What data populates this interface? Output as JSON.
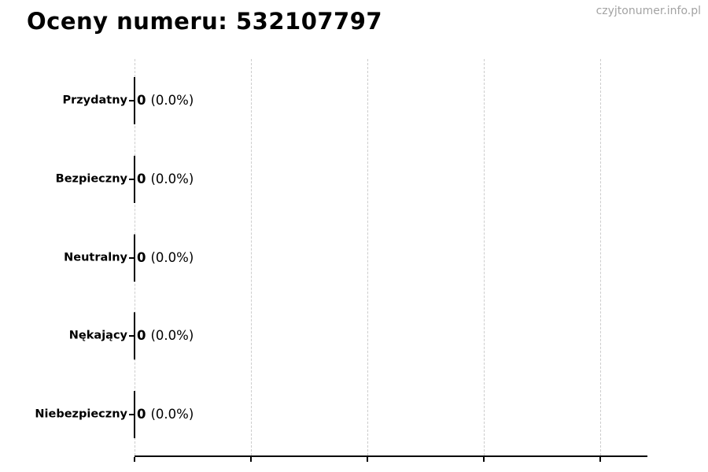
{
  "title": "Oceny numeru: 532107797",
  "watermark": "czyjtonumer.info.pl",
  "colors": {
    "background": "#ffffff",
    "text": "#000000",
    "watermark": "#a3a3a3",
    "gridline": "#cccccc",
    "axis": "#000000"
  },
  "chart_data": {
    "type": "bar",
    "orientation": "horizontal",
    "title": "Oceny numeru: 532107797",
    "categories": [
      "Przydatny",
      "Bezpieczny",
      "Neutralny",
      "Nękający",
      "Niebezpieczny"
    ],
    "values": [
      0,
      0,
      0,
      0,
      0
    ],
    "percentages": [
      0.0,
      0.0,
      0.0,
      0.0,
      0.0
    ],
    "rows": [
      {
        "label": "Przydatny",
        "value": "0",
        "percent": "(0.0%)"
      },
      {
        "label": "Bezpieczny",
        "value": "0",
        "percent": "(0.0%)"
      },
      {
        "label": "Neutralny",
        "value": "0",
        "percent": "(0.0%)"
      },
      {
        "label": "Nękający",
        "value": "0",
        "percent": "(0.0%)"
      },
      {
        "label": "Niebezpieczny",
        "value": "0",
        "percent": "(0.0%)"
      }
    ],
    "xlabel": "",
    "ylabel": "",
    "xlim": [
      0,
      1
    ],
    "grid": "vertical-dashed",
    "legend": "none",
    "bar_color": "none",
    "bar_edge_color": "#000000"
  }
}
